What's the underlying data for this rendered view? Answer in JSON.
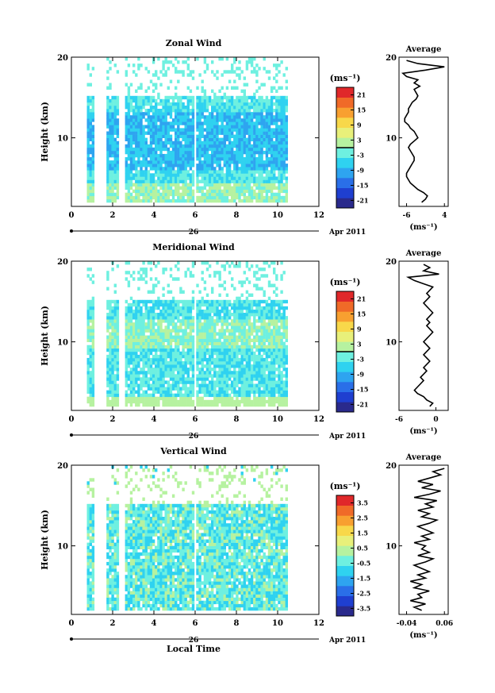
{
  "page": {
    "time_axis_label": "Local Time",
    "date_label": "26",
    "month_label": "Apr 2011"
  },
  "chart_data": [
    {
      "type": "heatmap",
      "id": "zonal",
      "title": "Zonal Wind",
      "xlabel": "",
      "ylabel": "Height (km)",
      "xlim": [
        0,
        12
      ],
      "ylim": [
        1.5,
        20
      ],
      "xticks": [
        "0",
        "2",
        "4",
        "6",
        "8",
        "10",
        "12"
      ],
      "yticks": [
        "10",
        "20"
      ],
      "colorbar": {
        "unit": "(ms⁻¹)",
        "range": [
          -24,
          24
        ],
        "ticks": [
          "21",
          "15",
          "9",
          "3",
          "-3",
          "-9",
          "-15",
          "-21"
        ],
        "colors": [
          "#2a2a8c",
          "#1f3fd0",
          "#2a6fe8",
          "#2ea4f0",
          "#2fd2f0",
          "#6ef0e0",
          "#b6f2a0",
          "#e8f07a",
          "#f8d84a",
          "#f8a030",
          "#f06a28",
          "#e0282a"
        ],
        "zero_line": 0
      },
      "average": {
        "title": "Average",
        "xlim": [
          -8,
          5
        ],
        "xticks": [
          "-6",
          "4"
        ],
        "yticks": [
          "10",
          "20"
        ],
        "xlabel": "(ms⁻¹)",
        "profile_x": [
          -2.0,
          -1.0,
          -0.5,
          -1.5,
          -3.0,
          -4.0,
          -5.0,
          -5.5,
          -6.0,
          -6.0,
          -5.5,
          -5.0,
          -4.5,
          -4.0,
          -4.0,
          -4.5,
          -5.0,
          -5.5,
          -5.0,
          -4.0,
          -3.0,
          -3.5,
          -4.0,
          -5.0,
          -5.5,
          -6.5,
          -6.5,
          -6.0,
          -5.5,
          -5.5,
          -5.0,
          -4.5,
          -3.5,
          -3.0,
          -3.5,
          -4.0,
          -2.5,
          -4.0,
          -3.0,
          -6.0,
          -7.0,
          -1.0,
          4.0,
          -3.0,
          -6.0
        ],
        "profile_y": [
          2.0,
          2.4,
          2.8,
          3.2,
          3.6,
          4.0,
          4.4,
          4.8,
          5.2,
          5.6,
          6.0,
          6.4,
          6.8,
          7.2,
          7.6,
          8.0,
          8.4,
          8.8,
          9.2,
          9.6,
          10.0,
          10.4,
          10.8,
          11.2,
          11.6,
          12.0,
          12.4,
          12.8,
          13.2,
          13.6,
          14.0,
          14.4,
          14.8,
          15.2,
          15.6,
          16.0,
          16.4,
          16.8,
          17.2,
          17.6,
          18.0,
          18.4,
          18.8,
          19.2,
          19.6
        ]
      }
    },
    {
      "type": "heatmap",
      "id": "meridional",
      "title": "Meridional Wind",
      "xlabel": "",
      "ylabel": "Height (km)",
      "xlim": [
        0,
        12
      ],
      "ylim": [
        1.5,
        20
      ],
      "xticks": [
        "0",
        "2",
        "4",
        "6",
        "8",
        "10",
        "12"
      ],
      "yticks": [
        "10",
        "20"
      ],
      "colorbar": {
        "unit": "(ms⁻¹)",
        "range": [
          -24,
          24
        ],
        "ticks": [
          "21",
          "15",
          "9",
          "3",
          "-3",
          "-9",
          "-15",
          "-21"
        ],
        "colors": [
          "#2a2a8c",
          "#1f3fd0",
          "#2a6fe8",
          "#2ea4f0",
          "#2fd2f0",
          "#6ef0e0",
          "#b6f2a0",
          "#e8f07a",
          "#f8d84a",
          "#f8a030",
          "#f06a28",
          "#e0282a"
        ],
        "zero_line": 0
      },
      "average": {
        "title": "Average",
        "xlim": [
          -6,
          2
        ],
        "xticks": [
          "-6",
          "0"
        ],
        "yticks": [
          "10",
          "20"
        ],
        "xlabel": "(ms⁻¹)",
        "profile_x": [
          -1.0,
          -0.5,
          -1.5,
          -2.0,
          -3.0,
          -3.5,
          -3.0,
          -2.5,
          -2.0,
          -2.5,
          -2.0,
          -1.5,
          -2.0,
          -1.5,
          -1.0,
          -1.5,
          -2.0,
          -1.5,
          -1.0,
          -1.5,
          -2.0,
          -1.5,
          -1.0,
          -0.5,
          -1.0,
          -1.5,
          -1.0,
          -1.5,
          -1.0,
          -0.5,
          -1.0,
          -1.5,
          -2.0,
          -1.5,
          -1.0,
          -1.5,
          -1.0,
          -0.5,
          -2.0,
          -3.5,
          -4.5,
          0.5,
          -2.0,
          -1.0,
          -2.0
        ],
        "profile_y": [
          2.0,
          2.4,
          2.8,
          3.2,
          3.6,
          4.0,
          4.4,
          4.8,
          5.2,
          5.6,
          6.0,
          6.4,
          6.8,
          7.2,
          7.6,
          8.0,
          8.4,
          8.8,
          9.2,
          9.6,
          10.0,
          10.4,
          10.8,
          11.2,
          11.6,
          12.0,
          12.4,
          12.8,
          13.2,
          13.6,
          14.0,
          14.4,
          14.8,
          15.2,
          15.6,
          16.0,
          16.4,
          16.8,
          17.2,
          17.6,
          18.0,
          18.4,
          18.8,
          19.2,
          19.6
        ]
      }
    },
    {
      "type": "heatmap",
      "id": "vertical",
      "title": "Vertical Wind",
      "xlabel": "Local Time",
      "ylabel": "Height (km)",
      "xlim": [
        0,
        12
      ],
      "ylim": [
        1.5,
        20
      ],
      "xticks": [
        "0",
        "2",
        "4",
        "6",
        "8",
        "10",
        "12"
      ],
      "yticks": [
        "10",
        "20"
      ],
      "colorbar": {
        "unit": "(ms⁻¹)",
        "range": [
          -4,
          4
        ],
        "ticks": [
          "3.5",
          "2.5",
          "1.5",
          "0.5",
          "-0.5",
          "-1.5",
          "-2.5",
          "-3.5"
        ],
        "colors": [
          "#2a2a8c",
          "#1f3fd0",
          "#2a6fe8",
          "#2ea4f0",
          "#2fd2f0",
          "#6ef0e0",
          "#b6f2a0",
          "#e8f07a",
          "#f8d84a",
          "#f8a030",
          "#f06a28",
          "#e0282a"
        ],
        "zero_line": null
      },
      "average": {
        "title": "Average",
        "xlim": [
          -0.06,
          0.07
        ],
        "xticks": [
          "-0.04",
          "0.06"
        ],
        "yticks": [
          "10",
          "20"
        ],
        "xlabel": "(ms⁻¹)",
        "profile_x": [
          0.0,
          -0.02,
          0.01,
          -0.03,
          0.0,
          -0.01,
          0.02,
          -0.02,
          0.0,
          -0.03,
          0.01,
          -0.01,
          0.02,
          0.0,
          -0.02,
          0.01,
          0.03,
          -0.01,
          0.02,
          0.0,
          0.01,
          -0.02,
          0.02,
          0.0,
          0.03,
          0.01,
          -0.01,
          0.02,
          0.04,
          0.0,
          0.02,
          -0.01,
          0.03,
          0.01,
          0.04,
          -0.02,
          0.02,
          0.05,
          0.0,
          0.03,
          -0.01,
          0.02,
          0.05,
          0.03,
          0.06
        ],
        "profile_y": [
          2.0,
          2.4,
          2.8,
          3.2,
          3.6,
          4.0,
          4.4,
          4.8,
          5.2,
          5.6,
          6.0,
          6.4,
          6.8,
          7.2,
          7.6,
          8.0,
          8.4,
          8.8,
          9.2,
          9.6,
          10.0,
          10.4,
          10.8,
          11.2,
          11.6,
          12.0,
          12.4,
          12.8,
          13.2,
          13.6,
          14.0,
          14.4,
          14.8,
          15.2,
          15.6,
          16.0,
          16.4,
          16.8,
          17.2,
          17.6,
          18.0,
          18.4,
          18.8,
          19.2,
          19.6
        ]
      }
    }
  ]
}
